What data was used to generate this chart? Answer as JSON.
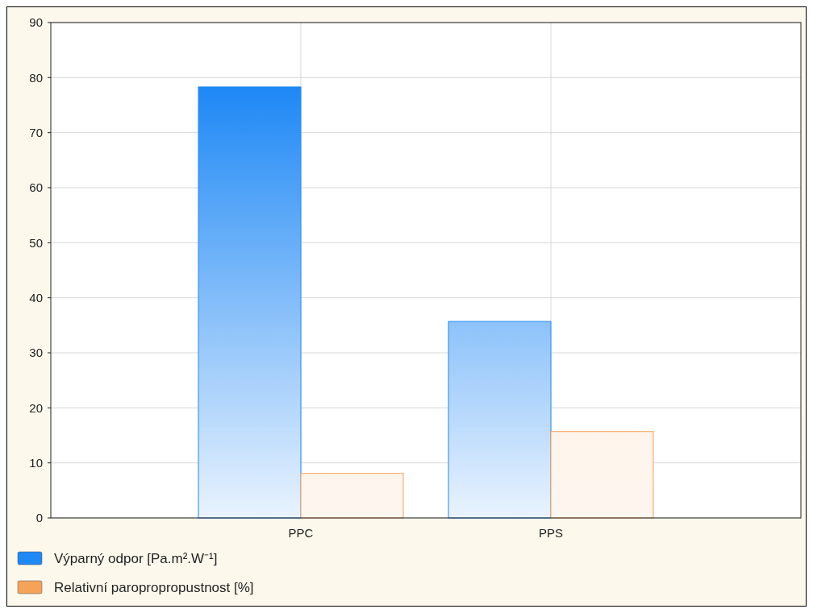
{
  "chart_data": {
    "type": "bar",
    "categories": [
      "PPC",
      "PPS"
    ],
    "series": [
      {
        "name": "Výparný odpor [Pa.m².W⁻¹]",
        "color": "#1e88f5",
        "values": [
          78.3,
          35.7
        ]
      },
      {
        "name": "Relativní paropropropustnost [%]",
        "color": "#f5a25a",
        "values": [
          8.1,
          15.7
        ]
      }
    ],
    "ylim": [
      0,
      90
    ],
    "yticks": [
      0,
      10,
      20,
      30,
      40,
      50,
      60,
      70,
      80,
      90
    ],
    "grid": true,
    "legend": "bottom"
  }
}
